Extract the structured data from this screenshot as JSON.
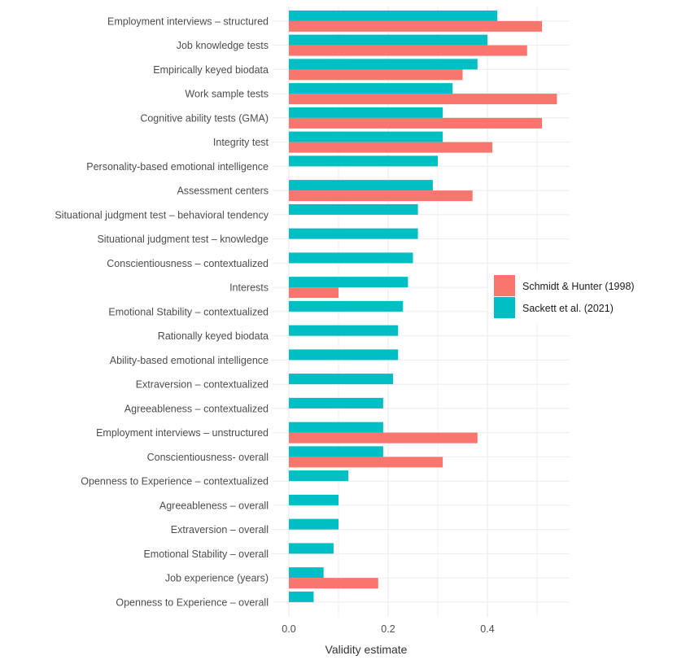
{
  "chart_data": {
    "type": "bar",
    "orientation": "horizontal",
    "title": "",
    "xlabel": "Validity estimate",
    "ylabel": "",
    "xlim": [
      0,
      0.57
    ],
    "xticks": [
      0.0,
      0.2,
      0.4
    ],
    "xtick_labels": [
      "0.0",
      "0.2",
      "0.4"
    ],
    "grid": true,
    "legend_position": "right",
    "categories": [
      "Employment interviews – structured",
      "Job knowledge tests",
      "Empirically keyed biodata",
      "Work sample tests",
      "Cognitive ability tests (GMA)",
      "Integrity test",
      "Personality-based emotional intelligence",
      "Assessment centers",
      "Situational judgment test – behavioral tendency",
      "Situational judgment test  – knowledge",
      "Conscientiousness – contextualized",
      "Interests",
      "Emotional Stability – contextualized",
      "Rationally keyed biodata",
      "Ability-based emotional intelligence",
      "Extraversion – contextualized",
      "Agreeableness – contextualized",
      "Employment interviews – unstructured",
      "Conscientiousness- overall",
      "Openness to Experience – contextualized",
      "Agreeableness – overall",
      "Extraversion – overall",
      "Emotional Stability – overall",
      "Job experience (years)",
      "Openness to Experience – overall"
    ],
    "series": [
      {
        "name": "Schmidt & Hunter (1998)",
        "color": "#F8766D",
        "values": [
          0.51,
          0.48,
          0.35,
          0.54,
          0.51,
          0.41,
          null,
          0.37,
          null,
          null,
          null,
          0.1,
          null,
          null,
          null,
          null,
          null,
          0.38,
          0.31,
          null,
          null,
          null,
          null,
          0.18,
          null
        ]
      },
      {
        "name": "Sackett et al. (2021)",
        "color": "#00BFC4",
        "values": [
          0.42,
          0.4,
          0.38,
          0.33,
          0.31,
          0.31,
          0.3,
          0.29,
          0.26,
          0.26,
          0.25,
          0.24,
          0.23,
          0.22,
          0.22,
          0.21,
          0.19,
          0.19,
          0.19,
          0.12,
          0.1,
          0.1,
          0.09,
          0.07,
          0.05
        ]
      }
    ],
    "legend": [
      {
        "label": "Schmidt & Hunter (1998)",
        "color": "#F8766D"
      },
      {
        "label": "Sackett et al. (2021)",
        "color": "#00BFC4"
      }
    ]
  }
}
